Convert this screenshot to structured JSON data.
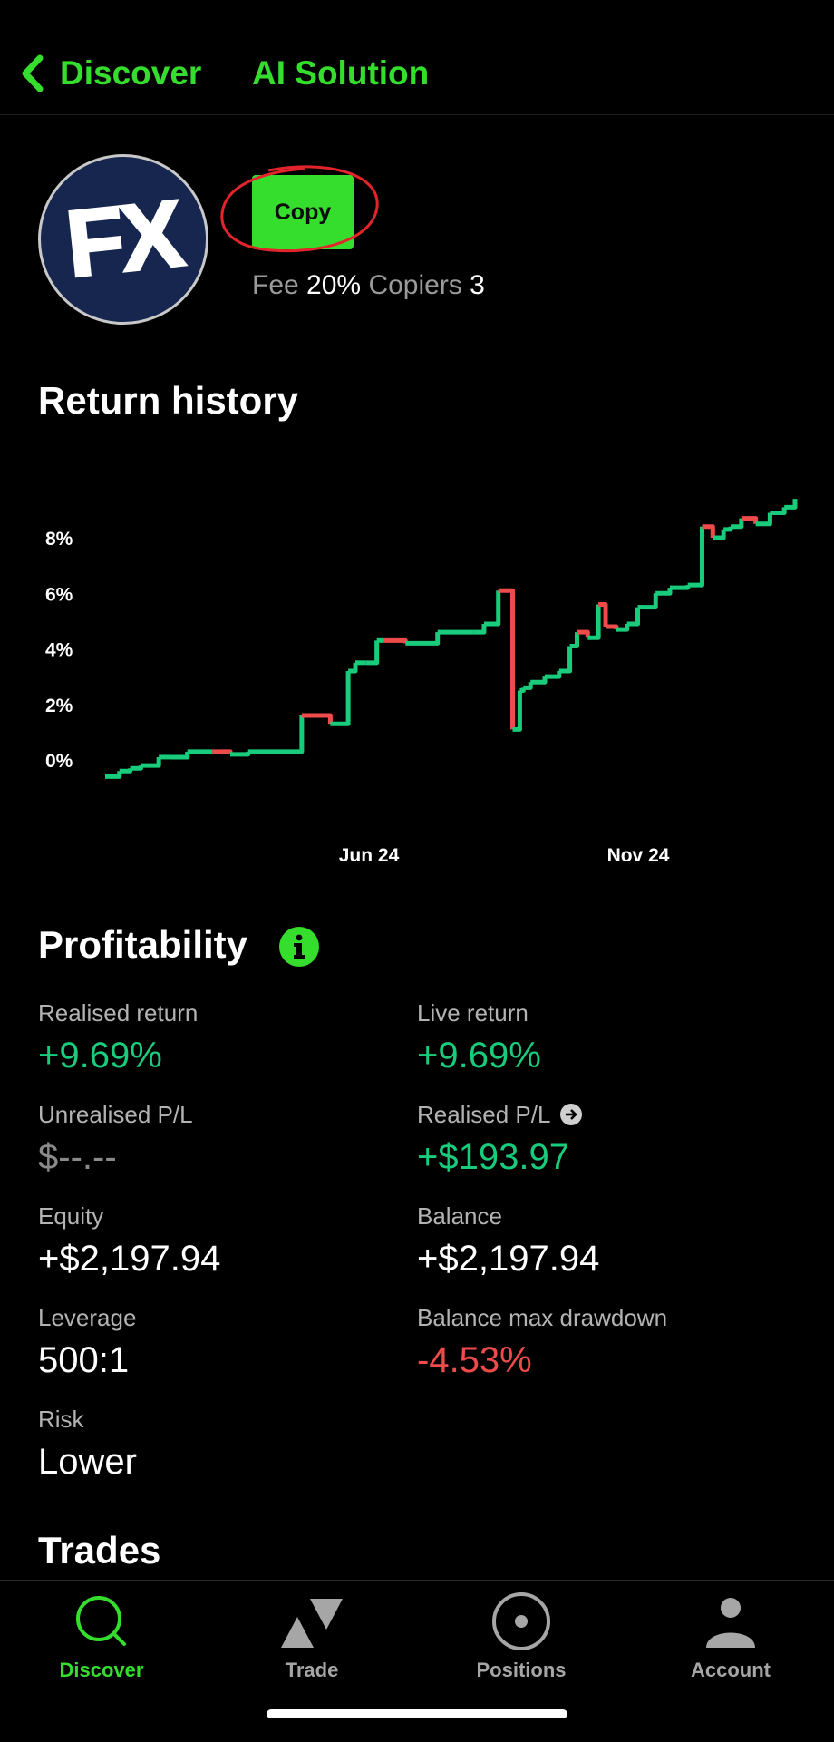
{
  "nav": {
    "back_label": "Discover",
    "title": "AI Solution"
  },
  "profile": {
    "avatar_text": "FX",
    "copy_label": "Copy",
    "fee_label": "Fee",
    "fee_value": "20%",
    "copiers_label": "Copiers",
    "copiers_value": "3"
  },
  "return_history": {
    "title": "Return history",
    "y_ticks": [
      "8%",
      "6%",
      "4%",
      "2%",
      "0%"
    ],
    "x_ticks": [
      "Jun 24",
      "Nov 24"
    ]
  },
  "chart_data": {
    "type": "line",
    "title": "Return history",
    "x_tick_labels": [
      "Jun 24",
      "Nov 24"
    ],
    "y_tick_labels": [
      "8%",
      "6%",
      "4%",
      "2%",
      "0%"
    ],
    "y_tick_values": [
      8,
      6,
      4,
      2,
      0
    ],
    "ylim": [
      -0.6,
      9.8
    ],
    "grid": false,
    "line_style": "step",
    "up_color": "#18cc7c",
    "down_color": "#ef4b4b",
    "series": [
      {
        "x": [
          0,
          0.4,
          0.7,
          1.0,
          1.5,
          1.8,
          2.3,
          3.0,
          3.5,
          4.0,
          5.5,
          6.3,
          6.8,
          7.0,
          7.3,
          7.6,
          7.8,
          8.4,
          9.3,
          10.3,
          10.6,
          11.0,
          11.4,
          11.6,
          11.7,
          11.9,
          12.3,
          12.7,
          13.0,
          13.2,
          13.5,
          13.8,
          14.0,
          14.3,
          14.6,
          14.9,
          15.1,
          15.4,
          15.8,
          16.3,
          16.7,
          17.0,
          17.3,
          17.5,
          17.8,
          18.2,
          18.6,
          19.0,
          19.3
        ],
        "y": [
          -0.6,
          -0.4,
          -0.3,
          -0.2,
          0.1,
          0.1,
          0.3,
          0.3,
          0.2,
          0.3,
          1.6,
          1.3,
          3.2,
          3.5,
          3.5,
          4.3,
          4.3,
          4.2,
          4.6,
          4.6,
          4.9,
          6.1,
          1.1,
          2.5,
          2.6,
          2.8,
          3.0,
          3.2,
          4.1,
          4.6,
          4.4,
          5.6,
          4.8,
          4.7,
          4.9,
          5.5,
          5.5,
          6.0,
          6.2,
          6.3,
          8.4,
          8.0,
          8.3,
          8.4,
          8.7,
          8.5,
          8.9,
          9.1,
          9.4
        ]
      }
    ]
  },
  "profitability": {
    "title": "Profitability",
    "stats": [
      {
        "label": "Realised return",
        "value": "+9.69%"
      },
      {
        "label": "Live return",
        "value": "+9.69%"
      },
      {
        "label": "Unrealised P/L",
        "value": "$--.--"
      },
      {
        "label": "Realised P/L",
        "value": "+$193.97"
      },
      {
        "label": "Equity",
        "value": "+$2,197.94"
      },
      {
        "label": "Balance",
        "value": "+$2,197.94"
      },
      {
        "label": "Leverage",
        "value": "500:1"
      },
      {
        "label": "Balance max drawdown",
        "value": "-4.53%"
      },
      {
        "label": "Risk",
        "value": "Lower"
      }
    ]
  },
  "trades": {
    "title": "Trades"
  },
  "tabbar": {
    "discover": "Discover",
    "trade": "Trade",
    "positions": "Positions",
    "account": "Account"
  },
  "colors": {
    "accent": "#35dd2d",
    "positive": "#18cc7c",
    "negative": "#ef4b4b",
    "avatar_bg": "#16264e"
  }
}
